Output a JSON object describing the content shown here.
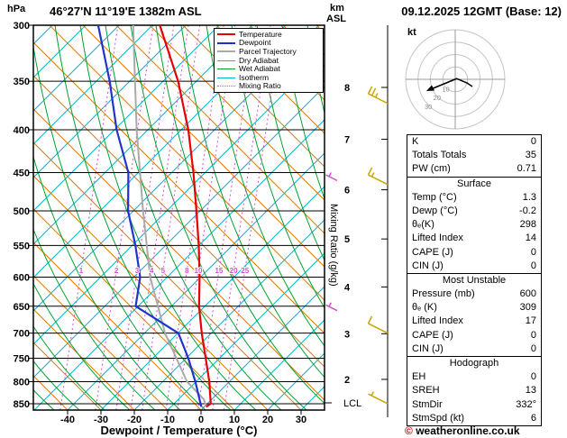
{
  "header": {
    "station": "46°27'N 11°19'E 1382m ASL",
    "datetime": "09.12.2025 12GMT (Base: 12)",
    "pressure_unit": "hPa",
    "alt_unit_line1": "km",
    "alt_unit_line2": "ASL"
  },
  "watermark": {
    "symbol": "©",
    "text": "weatheronline.co.uk"
  },
  "hodograph": {
    "unit": "kt",
    "ring_labels": [
      "10",
      "20",
      "30"
    ]
  },
  "chart_data": {
    "type": "skewt-log-p-sounding",
    "xlabel": "Dewpoint / Temperature (°C)",
    "x_ticks": [
      -40,
      -30,
      -20,
      -10,
      0,
      10,
      20,
      30
    ],
    "pressure_levels": [
      300,
      350,
      400,
      450,
      500,
      550,
      600,
      650,
      700,
      750,
      800,
      850
    ],
    "km_labels": [
      2,
      3,
      4,
      5,
      6,
      7,
      8
    ],
    "mixing_ratio_label": "Mixing Ratio (g/kg)",
    "mixing_ratio_values": [
      1,
      2,
      3,
      4,
      5,
      8,
      10,
      15,
      20,
      25
    ],
    "lcl_label": "LCL",
    "legend": [
      {
        "label": "Temperature",
        "color": "#e60000",
        "style": "solid",
        "width": 2
      },
      {
        "label": "Dewpoint",
        "color": "#2233cc",
        "style": "solid",
        "width": 2
      },
      {
        "label": "Parcel Trajectory",
        "color": "#aaaaaa",
        "style": "solid",
        "width": 2
      },
      {
        "label": "Dry Adiabat",
        "color": "#e07a00",
        "style": "solid",
        "width": 1
      },
      {
        "label": "Wet Adiabat",
        "color": "#00a432",
        "style": "solid",
        "width": 1
      },
      {
        "label": "Isotherm",
        "color": "#00b4d0",
        "style": "solid",
        "width": 1
      },
      {
        "label": "Mixing Ratio",
        "color": "#d24fd2",
        "style": "dotted",
        "width": 1
      }
    ],
    "temperature_profile": [
      {
        "p": 857,
        "t": 1.3
      },
      {
        "p": 850,
        "t": 2.4
      },
      {
        "p": 800,
        "t": 0.2
      },
      {
        "p": 750,
        "t": -2.8
      },
      {
        "p": 700,
        "t": -6.0
      },
      {
        "p": 650,
        "t": -9.0
      },
      {
        "p": 600,
        "t": -11.2
      },
      {
        "p": 550,
        "t": -14.0
      },
      {
        "p": 500,
        "t": -17.5
      },
      {
        "p": 450,
        "t": -21.5
      },
      {
        "p": 400,
        "t": -26.5
      },
      {
        "p": 350,
        "t": -33.5
      },
      {
        "p": 300,
        "t": -43.5
      }
    ],
    "dewpoint_profile": [
      {
        "p": 857,
        "t": -0.2
      },
      {
        "p": 800,
        "t": -4.0
      },
      {
        "p": 750,
        "t": -8.0
      },
      {
        "p": 700,
        "t": -13.0
      },
      {
        "p": 650,
        "t": -28.0
      },
      {
        "p": 600,
        "t": -29.0
      },
      {
        "p": 550,
        "t": -33.0
      },
      {
        "p": 500,
        "t": -38.0
      },
      {
        "p": 450,
        "t": -41.0
      },
      {
        "p": 400,
        "t": -48.0
      },
      {
        "p": 350,
        "t": -54.0
      },
      {
        "p": 300,
        "t": -62.0
      }
    ],
    "parcel_profile": [
      {
        "p": 857,
        "t": 1.3
      },
      {
        "p": 840,
        "t": 0.0
      },
      {
        "p": 800,
        "t": -6.5
      },
      {
        "p": 700,
        "t": -17.0
      },
      {
        "p": 600,
        "t": -26.0
      },
      {
        "p": 500,
        "t": -33.5
      },
      {
        "p": 400,
        "t": -42.0
      },
      {
        "p": 300,
        "t": -51.5
      }
    ],
    "wind_barbs": [
      {
        "p": 372,
        "kt": 25,
        "color": "#c8a500",
        "pos": "staff"
      },
      {
        "p": 465,
        "kt": 15,
        "color": "#c8a500",
        "pos": "staff"
      },
      {
        "p": 700,
        "kt": 10,
        "color": "#c8a500",
        "pos": "staff"
      },
      {
        "p": 850,
        "kt": 5,
        "color": "#c8a500",
        "pos": "staff"
      },
      {
        "p": 460,
        "kt": 5,
        "color": "#d24fd2",
        "pos": "edge"
      },
      {
        "p": 658,
        "kt": 5,
        "color": "#d24fd2",
        "pos": "edge"
      }
    ]
  },
  "indices": {
    "sections": [
      {
        "title": null,
        "rows": [
          [
            "K",
            "0"
          ],
          [
            "Totals Totals",
            "35"
          ],
          [
            "PW (cm)",
            "0.71"
          ]
        ]
      },
      {
        "title": "Surface",
        "rows": [
          [
            "Temp (°C)",
            "1.3"
          ],
          [
            "Dewp (°C)",
            "-0.2"
          ],
          [
            "θₑ(K)",
            "298"
          ],
          [
            "Lifted Index",
            "14"
          ],
          [
            "CAPE (J)",
            "0"
          ],
          [
            "CIN (J)",
            "0"
          ]
        ]
      },
      {
        "title": "Most Unstable",
        "rows": [
          [
            "Pressure (mb)",
            "600"
          ],
          [
            "θₑ (K)",
            "309"
          ],
          [
            "Lifted Index",
            "17"
          ],
          [
            "CAPE (J)",
            "0"
          ],
          [
            "CIN (J)",
            "0"
          ]
        ]
      },
      {
        "title": "Hodograph",
        "rows": [
          [
            "EH",
            "0"
          ],
          [
            "SREH",
            "13"
          ],
          [
            "StmDir",
            "332°"
          ],
          [
            "StmSpd (kt)",
            "6"
          ]
        ]
      }
    ]
  }
}
